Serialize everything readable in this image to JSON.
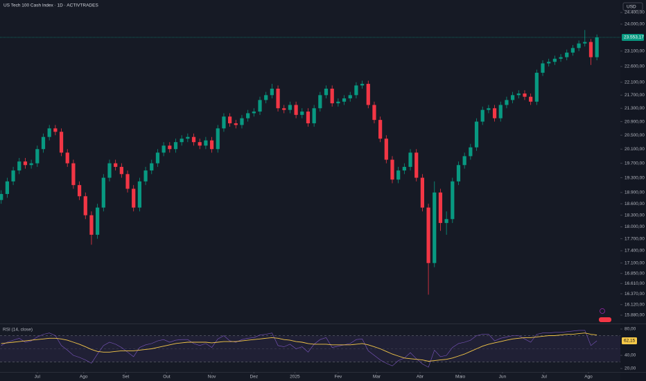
{
  "chart_data": [
    {
      "type": "candlestick",
      "title": "US Tech 100 Cash Index · 1D · ACTIVTRADES",
      "currency": "USD",
      "log_scale": true,
      "up_color": "#089981",
      "down_color": "#f23645",
      "open": [
        18700,
        18860,
        19200,
        19500,
        19750,
        19650,
        19700,
        20100,
        20450,
        20700,
        20600,
        20000,
        19700,
        19100,
        18800,
        18300,
        17800,
        18500,
        19300,
        19700,
        19600,
        19400,
        19000,
        18500,
        19200,
        19500,
        19700,
        20000,
        20200,
        20100,
        20300,
        20400,
        20450,
        20300,
        20200,
        20350,
        20100,
        20700,
        21050,
        20850,
        20800,
        21000,
        21150,
        21200,
        21550,
        21700,
        21900,
        21300,
        21250,
        21400,
        21100,
        21200,
        20850,
        21300,
        21700,
        21900,
        21450,
        21500,
        21600,
        21700,
        22000,
        22050,
        21400,
        20950,
        20400,
        19800,
        19250,
        19500,
        19600,
        20000,
        19300,
        18500,
        17100,
        18900,
        18100,
        18200,
        19200,
        19650,
        19900,
        20150,
        20900,
        21250,
        21300,
        21000,
        21400,
        21550,
        21700,
        21750,
        21650,
        21500,
        22400,
        22700,
        22750,
        22850,
        22900,
        23050,
        23200,
        23350,
        23400,
        22900
      ],
      "high": [
        18960,
        19300,
        19600,
        19850,
        19850,
        19800,
        20200,
        20550,
        20800,
        20800,
        20700,
        20100,
        19800,
        19200,
        18900,
        18400,
        18600,
        19400,
        19800,
        19800,
        19700,
        19500,
        19100,
        19300,
        19600,
        19800,
        20100,
        20300,
        20300,
        20400,
        20500,
        20550,
        20550,
        20400,
        20450,
        20450,
        20800,
        21150,
        21150,
        20950,
        21100,
        21250,
        21300,
        21650,
        21800,
        22050,
        22000,
        21400,
        21500,
        21500,
        21300,
        21300,
        21400,
        21800,
        22000,
        22000,
        21600,
        21700,
        21800,
        22100,
        22150,
        22150,
        21500,
        21050,
        20500,
        19900,
        19600,
        19700,
        20100,
        20100,
        19400,
        18600,
        19200,
        19000,
        18400,
        19300,
        19750,
        20000,
        20250,
        21000,
        21350,
        21400,
        21400,
        21500,
        21650,
        21800,
        21850,
        21850,
        21750,
        22500,
        22800,
        22850,
        22950,
        23000,
        23150,
        23300,
        23450,
        23800,
        23500,
        23650
      ],
      "low": [
        18600,
        18760,
        19100,
        19400,
        19550,
        19550,
        19600,
        20000,
        20350,
        20500,
        19900,
        19600,
        19000,
        18700,
        18200,
        17550,
        17700,
        18400,
        19200,
        19500,
        19300,
        18900,
        18400,
        18400,
        19100,
        19400,
        19600,
        19900,
        20000,
        20000,
        20200,
        20300,
        20200,
        20100,
        20100,
        20000,
        20000,
        20600,
        20750,
        20700,
        20700,
        20900,
        21050,
        21100,
        21450,
        21600,
        21200,
        21150,
        21150,
        21000,
        21000,
        20750,
        20750,
        21200,
        21600,
        21350,
        21350,
        21400,
        21500,
        21600,
        21900,
        21300,
        20850,
        20300,
        19700,
        19150,
        19150,
        19400,
        19500,
        19200,
        18400,
        16350,
        17000,
        17900,
        17800,
        18100,
        19100,
        19550,
        19800,
        20050,
        20800,
        21150,
        20900,
        20900,
        21300,
        21450,
        21600,
        21550,
        21400,
        21400,
        22300,
        22600,
        22650,
        22750,
        22800,
        22950,
        23100,
        23250,
        22650,
        22800
      ],
      "close": [
        18860,
        19200,
        19500,
        19750,
        19650,
        19700,
        20100,
        20450,
        20700,
        20600,
        20000,
        19700,
        19100,
        18800,
        18300,
        17800,
        18500,
        19300,
        19700,
        19600,
        19400,
        19000,
        18500,
        19200,
        19500,
        19700,
        20000,
        20200,
        20100,
        20300,
        20400,
        20450,
        20300,
        20200,
        20350,
        20100,
        20700,
        21050,
        20850,
        20800,
        21000,
        21150,
        21200,
        21550,
        21700,
        21900,
        21300,
        21250,
        21400,
        21100,
        21200,
        20850,
        21300,
        21700,
        21900,
        21450,
        21500,
        21600,
        21700,
        22000,
        22050,
        21400,
        20950,
        20400,
        19800,
        19250,
        19500,
        19600,
        20000,
        19300,
        18500,
        17100,
        18900,
        18100,
        18200,
        19200,
        19650,
        19900,
        20150,
        20900,
        21250,
        21300,
        21000,
        21400,
        21550,
        21700,
        21750,
        21650,
        21500,
        22400,
        22700,
        22750,
        22850,
        22900,
        23050,
        23200,
        23350,
        23400,
        22900,
        23553.17
      ],
      "last_price": {
        "value": 23553.17,
        "label": "23.553,17"
      },
      "xlim": [
        -0.2,
        102.9
      ],
      "ylim": [
        15694,
        24836
      ],
      "xticks": [
        {
          "value": 6.0,
          "label": "Jul"
        },
        {
          "value": 13.7,
          "label": "Ago"
        },
        {
          "value": 20.7,
          "label": "Set"
        },
        {
          "value": 27.5,
          "label": "Out"
        },
        {
          "value": 35.0,
          "label": "Nov"
        },
        {
          "value": 42.0,
          "label": "Dez"
        },
        {
          "value": 48.8,
          "label": "2025"
        },
        {
          "value": 56.0,
          "label": "Fev"
        },
        {
          "value": 62.4,
          "label": "Mar"
        },
        {
          "value": 69.6,
          "label": "Abr"
        },
        {
          "value": 76.3,
          "label": "Maio"
        },
        {
          "value": 83.3,
          "label": "Jun"
        },
        {
          "value": 90.2,
          "label": "Jul"
        },
        {
          "value": 97.6,
          "label": "Ago"
        }
      ],
      "yticks": [
        {
          "value": 24400,
          "label": "24.400,00"
        },
        {
          "value": 24000,
          "label": "24.000,00"
        },
        {
          "value": 23100,
          "label": "23.100,00"
        },
        {
          "value": 22600,
          "label": "22.600,00"
        },
        {
          "value": 22100,
          "label": "22.100,00"
        },
        {
          "value": 21700,
          "label": "21.700,00"
        },
        {
          "value": 21300,
          "label": "21.300,00"
        },
        {
          "value": 20900,
          "label": "20.900,00"
        },
        {
          "value": 20500,
          "label": "20.500,00"
        },
        {
          "value": 20100,
          "label": "20.100,00"
        },
        {
          "value": 19700,
          "label": "19.700,00"
        },
        {
          "value": 19300,
          "label": "19.300,00"
        },
        {
          "value": 18900,
          "label": "18.900,00"
        },
        {
          "value": 18600,
          "label": "18.600,00"
        },
        {
          "value": 18300,
          "label": "18.300,00"
        },
        {
          "value": 18000,
          "label": "18.000,00"
        },
        {
          "value": 17700,
          "label": "17.700,00"
        },
        {
          "value": 17400,
          "label": "17.400,00"
        },
        {
          "value": 17100,
          "label": "17.100,00"
        },
        {
          "value": 16850,
          "label": "16.850,00"
        },
        {
          "value": 16610,
          "label": "16.610,00"
        },
        {
          "value": 16370,
          "label": "16.370,00"
        },
        {
          "value": 16120,
          "label": "16.120,00"
        },
        {
          "value": 15880,
          "label": "15.880,00"
        }
      ]
    },
    {
      "type": "line",
      "title": "RSI (14, close)",
      "xlim": [
        -0.2,
        102.9
      ],
      "ylim": [
        20,
        80
      ],
      "band": [
        30,
        70
      ],
      "band_color": "#7e57c2",
      "midline": 50,
      "yticks": [
        {
          "value": 80,
          "label": "80,00"
        },
        {
          "value": 40,
          "label": "40,00"
        },
        {
          "value": 20,
          "label": "20,00"
        }
      ],
      "last_value_label": "62,15",
      "series": [
        {
          "name": "RSI",
          "color": "#7e57c2",
          "values": [
            55,
            60,
            63,
            66,
            60,
            62,
            68,
            72,
            74,
            70,
            55,
            48,
            40,
            37,
            33,
            28,
            42,
            55,
            60,
            57,
            52,
            45,
            38,
            52,
            56,
            58,
            62,
            64,
            60,
            63,
            64,
            64,
            58,
            55,
            58,
            52,
            65,
            70,
            62,
            60,
            64,
            66,
            67,
            71,
            72,
            74,
            55,
            53,
            57,
            50,
            53,
            45,
            57,
            64,
            67,
            52,
            54,
            56,
            58,
            64,
            65,
            47,
            40,
            33,
            28,
            24,
            32,
            36,
            44,
            35,
            27,
            22,
            48,
            38,
            40,
            52,
            58,
            60,
            63,
            70,
            72,
            72,
            62,
            66,
            68,
            70,
            70,
            65,
            60,
            72,
            74,
            74,
            75,
            75,
            76,
            77,
            78,
            78,
            55,
            62.15
          ]
        },
        {
          "name": "RSI-based MA",
          "color": "#f7c948",
          "values": [
            58,
            59,
            60,
            61,
            62,
            63,
            64,
            65,
            66,
            66,
            65,
            63,
            60,
            57,
            53,
            49,
            46,
            45,
            45,
            46,
            47,
            47,
            47,
            48,
            49,
            50,
            52,
            54,
            56,
            58,
            59,
            60,
            60,
            60,
            60,
            59,
            60,
            61,
            61,
            61,
            62,
            63,
            64,
            65,
            66,
            67,
            66,
            64,
            63,
            61,
            60,
            58,
            57,
            57,
            57,
            56,
            56,
            56,
            56,
            57,
            58,
            56,
            53,
            50,
            46,
            42,
            39,
            36,
            35,
            34,
            33,
            31,
            32,
            33,
            34,
            36,
            39,
            42,
            46,
            50,
            54,
            57,
            59,
            61,
            63,
            65,
            66,
            67,
            67,
            68,
            69,
            70,
            70,
            71,
            72,
            72,
            73,
            74,
            72,
            71
          ]
        }
      ]
    }
  ]
}
